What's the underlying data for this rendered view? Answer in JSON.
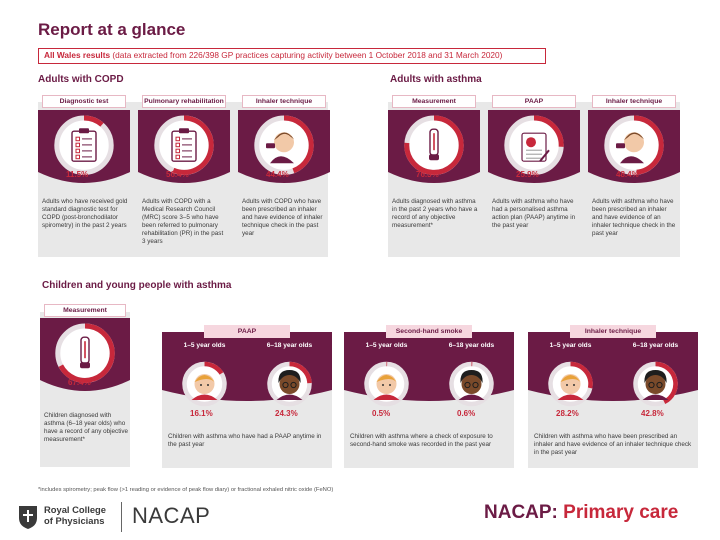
{
  "title": "Report at a glance",
  "banner": {
    "bold": "All Wales results",
    "text": " (data extracted from 226/398 GP practices capturing activity between 1 October 2018 and 31 March 2020)"
  },
  "copd": {
    "heading": "Adults with COPD",
    "items": [
      {
        "label": "Diagnostic test",
        "value": 11.5,
        "value_text": "11.5%",
        "icon": "clipboard-icon",
        "desc": "Adults who have received gold standard diagnostic test for COPD (post-bronchodilator spirometry) in the past 2 years"
      },
      {
        "label": "Pulmonary rehabilitation",
        "value": 56.4,
        "value_text": "56.4%",
        "icon": "clipboard-icon",
        "desc": "Adults with COPD with a Medical Research Council (MRC) score 3–5 who have been referred to pulmonary rehabilitation (PR) in the past 3 years"
      },
      {
        "label": "Inhaler technique",
        "value": 44.4,
        "value_text": "44.4%",
        "icon": "person-inhaler-icon",
        "desc": "Adults with COPD who have been prescribed an inhaler and have evidence of inhaler technique check in the past year"
      }
    ]
  },
  "asthma": {
    "heading": "Adults with asthma",
    "items": [
      {
        "label": "Measurement",
        "value": 76.3,
        "value_text": "76.3%",
        "icon": "peak-flow-icon",
        "desc": "Adults diagnosed with asthma in the past 2 years who have a record of any objective measurement*"
      },
      {
        "label": "PAAP",
        "value": 25.9,
        "value_text": "25.9%",
        "icon": "action-plan-icon",
        "desc": "Adults with asthma who have had a personalised asthma action plan (PAAP) anytime in the past year"
      },
      {
        "label": "Inhaler technique",
        "value": 48.4,
        "value_text": "48.4%",
        "icon": "person-inhaler-icon",
        "desc": "Adults with asthma who have been prescribed an inhaler and have evidence of an inhaler technique check in the past year"
      }
    ]
  },
  "children": {
    "heading": "Children and young people with asthma",
    "measurement": {
      "label": "Measurement",
      "value": 67.4,
      "value_text": "67.4%",
      "icon": "peak-flow-icon",
      "desc": "Children diagnosed with asthma (6–18 year olds) who have a record of any objective measurement*"
    },
    "groups": [
      {
        "label": "PAAP",
        "ages": [
          "1–5 year olds",
          "6–18 year olds"
        ],
        "values": [
          16.1,
          24.3
        ],
        "value_texts": [
          "16.1%",
          "24.3%"
        ],
        "desc": "Children with asthma who have had a PAAP anytime in the past year"
      },
      {
        "label": "Second-hand smoke",
        "ages": [
          "1–5 year olds",
          "6–18 year olds"
        ],
        "values": [
          0.5,
          0.6
        ],
        "value_texts": [
          "0.5%",
          "0.6%"
        ],
        "desc": "Children with asthma where a check of exposure to second-hand smoke was recorded in the past year"
      },
      {
        "label": "Inhaler technique",
        "ages": [
          "1–5 year olds",
          "6–18 year olds"
        ],
        "values": [
          28.2,
          42.8
        ],
        "value_texts": [
          "28.2%",
          "42.8%"
        ],
        "desc": "Children with asthma who have been prescribed an inhaler and have evidence of an inhaler technique check in the past year"
      }
    ]
  },
  "footnote": "*includes spirometry; peak flow (>1 reading or evidence of peak flow diary) or fractional exhaled nitric oxide (FeNO)",
  "logos": {
    "rcp_line1": "Royal College",
    "rcp_line2": "of Physicians",
    "nacap": "NACAP",
    "brand_main": "NACAP:",
    "brand_sub": " Primary care"
  },
  "colors": {
    "plum": "#6b1b45",
    "red": "#c7283b",
    "pink": "#f6d7df",
    "skin": "#f2c9a8",
    "gray": "#e8e8e8"
  }
}
